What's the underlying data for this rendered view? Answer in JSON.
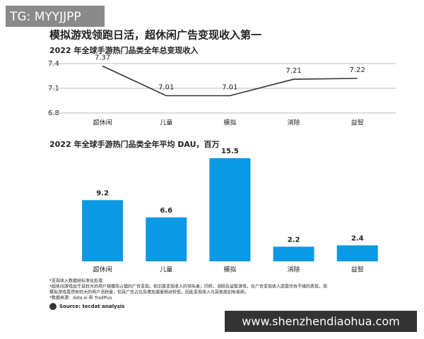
{
  "title": "模拟游戏领跑日活，超休闲广告变现收入第一",
  "chart_data": [
    {
      "type": "line",
      "title": "2022 年全球手游热门品类全年总变现收入",
      "categories": [
        "超休闲",
        "儿童",
        "模拟",
        "消除",
        "益智"
      ],
      "values": [
        7.37,
        7.01,
        7.01,
        7.21,
        7.22
      ],
      "color": "#333333",
      "ylim": [
        6.8,
        7.4
      ],
      "yticks": [
        6.8,
        7.1,
        7.4
      ],
      "grid": true
    },
    {
      "type": "bar",
      "title": "2022 年全球手游热门品类全年平均 DAU，百万",
      "categories": [
        "超休闲",
        "儿童",
        "模拟",
        "消除",
        "益智"
      ],
      "values": [
        9.2,
        6.6,
        15.5,
        2.2,
        2.4
      ],
      "color": "#0a9ae5"
    }
  ],
  "notes": [
    "*变现收入数据经标准化处理",
    "*超休闲游戏由于其较大的用户规模而占据的广告变现，依旧是变现收入的领先者；同样，消除及益智游戏，在广告变现收入层面也有不错的表现，而",
    "模拟游戏虽然有较大的用户活跃度，但其广告占比及增加速度相对较低，因此变现收入与其他类别有差距。",
    "*数据来源：data.ai 和 TradPlus"
  ],
  "source": "Source: tecdat analysis",
  "watermarks": [
    "TG: MYYJJPP",
    "www.shenzhendiaohua.com"
  ]
}
